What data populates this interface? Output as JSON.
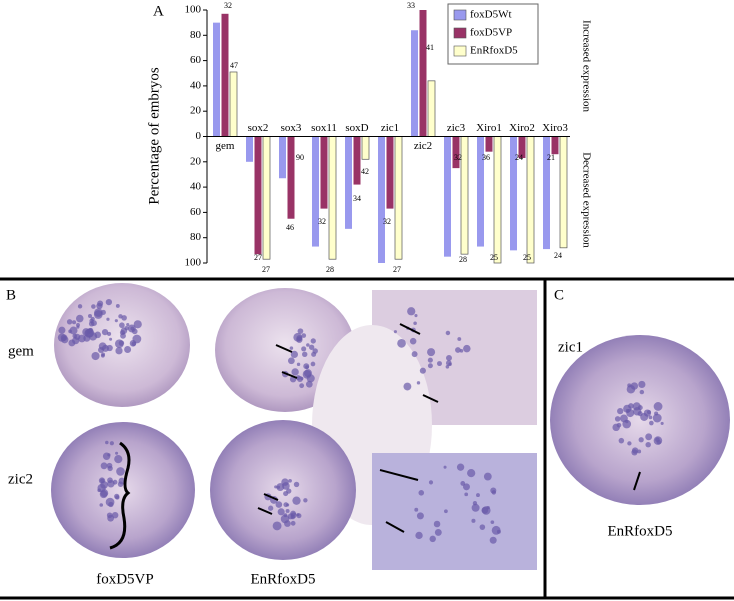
{
  "chart_data": {
    "type": "bar",
    "panel_label": "A",
    "ylabel": "Percentage of embryos",
    "side_labels": [
      "Increased expression",
      "Decreased expression"
    ],
    "categories": [
      "gem",
      "sox2",
      "sox3",
      "sox11",
      "soxD",
      "zic1",
      "zic2",
      "zic3",
      "Xiro1",
      "Xiro2",
      "Xiro3"
    ],
    "series": [
      {
        "name": "foxD5Wt",
        "color": "#9999ee",
        "values": [
          90,
          -20,
          -33,
          -87,
          -73,
          -100,
          84,
          -95,
          -87,
          -90,
          -89
        ]
      },
      {
        "name": "foxD5VP",
        "color": "#993366",
        "values": [
          97,
          -93,
          -65,
          -57,
          -38,
          -57,
          100,
          -25,
          -12,
          -17,
          -14
        ]
      },
      {
        "name": "EnRfoxD5",
        "color": "#ffffcc",
        "values": [
          51,
          -97,
          0,
          -97,
          -18,
          -97,
          44,
          -93,
          -100,
          -100,
          -88
        ]
      }
    ],
    "ylim": [
      -100,
      100
    ],
    "yticks": [
      {
        "value": -100,
        "label": "100"
      },
      {
        "value": -80,
        "label": "80"
      },
      {
        "value": -60,
        "label": "60"
      },
      {
        "value": -40,
        "label": "40"
      },
      {
        "value": -20,
        "label": "20"
      },
      0,
      20,
      40,
      60,
      80,
      100
    ],
    "annotations": [
      "32",
      "47",
      "33",
      "41",
      "27",
      "27",
      "90",
      "46",
      "32",
      "28",
      "42",
      "34",
      "32",
      "27",
      "32",
      "28",
      "36",
      "25",
      "24",
      "25",
      "21",
      "24"
    ]
  },
  "panels": {
    "b_label": "B",
    "c_label": "C",
    "rows": [
      "gem",
      "zic2"
    ],
    "b_columns": [
      "foxD5VP",
      "EnRfoxD5"
    ],
    "c_row": "zic1",
    "c_column": "EnRfoxD5",
    "asterisk": "*"
  }
}
